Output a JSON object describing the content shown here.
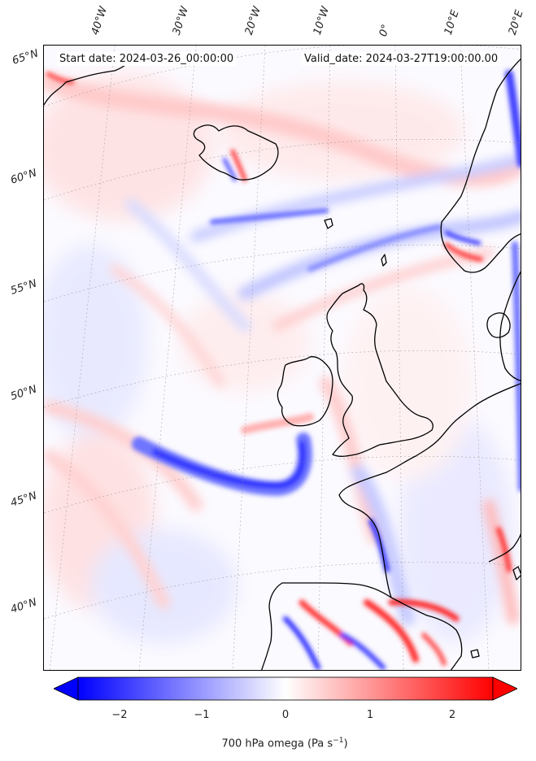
{
  "info": {
    "start_date": "Start date: 2024-03-26_00:00:00",
    "valid_date": "Valid_date: 2024-03-27T19:00:00.00"
  },
  "graticule": {
    "lon_labels": [
      "40°W",
      "30°W",
      "20°W",
      "10°W",
      "0°",
      "10°E",
      "20°E"
    ],
    "lat_labels": [
      "65°N",
      "60°N",
      "55°N",
      "50°N",
      "45°N",
      "40°N"
    ]
  },
  "colorbar": {
    "label": "700 hPa omega (Pa s",
    "label_sup": "−1",
    "label_end": ")",
    "ticks": [
      "−2",
      "−1",
      "0",
      "1",
      "2"
    ],
    "range": [
      -2.6,
      2.6
    ],
    "min_color": "#0000ff",
    "mid_color": "#ffffff",
    "max_color": "#ff0000"
  },
  "map": {
    "type": "filled contour map",
    "variable": "700 hPa omega",
    "ocean_background": "#fbfaff",
    "coastline_color": "#000000"
  }
}
